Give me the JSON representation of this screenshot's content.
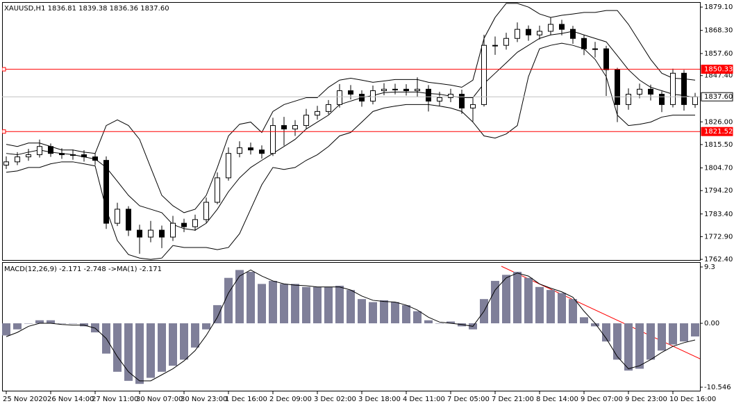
{
  "chart_data": [
    {
      "type": "candlestick",
      "title": "XAUUSD,H1  1836.81 1839.38 1836.36 1837.60",
      "categories": [
        "25 Nov 2020",
        null,
        null,
        null,
        "26 Nov 14:00",
        null,
        null,
        null,
        "27 Nov 11:00",
        null,
        null,
        null,
        "30 Nov 07:00",
        null,
        null,
        null,
        "30 Nov 23:00",
        null,
        null,
        null,
        "1 Dec 16:00",
        null,
        null,
        null,
        "2 Dec 09:00",
        null,
        null,
        null,
        "3 Dec 02:00",
        null,
        null,
        null,
        "3 Dec 18:00",
        null,
        null,
        null,
        "4 Dec 11:00",
        null,
        null,
        null,
        "7 Dec 05:00",
        null,
        null,
        null,
        "7 Dec 21:00",
        null,
        null,
        null,
        "8 Dec 14:00",
        null,
        null,
        null,
        "9 Dec 07:00",
        null,
        null,
        null,
        "9 Dec 23:00",
        null,
        null,
        null,
        "10 Dec 16:00",
        null,
        null
      ],
      "open": [
        1806.0,
        1807.5,
        1809.8,
        1810.8,
        1814.6,
        1811.4,
        1810.8,
        1810.8,
        1809.8,
        1808.2,
        1779.1,
        1785.6,
        1775.9,
        1772.7,
        1775.9,
        1772.7,
        1779.1,
        1777.5,
        1780.8,
        1788.8,
        1800.1,
        1811.4,
        1814.0,
        1813.0,
        1811.4,
        1824.3,
        1822.7,
        1824.3,
        1829.1,
        1830.8,
        1834.0,
        1840.4,
        1838.8,
        1835.6,
        1840.4,
        1841.1,
        1841.1,
        1840.4,
        1841.1,
        1835.6,
        1837.2,
        1838.8,
        1832.4,
        1834.0,
        1861.4,
        1861.4,
        1864.6,
        1868.8,
        1866.2,
        1867.9,
        1871.1,
        1868.8,
        1864.6,
        1859.8,
        1859.8,
        1850.1,
        1834.0,
        1838.8,
        1841.1,
        1838.8,
        1834.0,
        1848.5,
        1834.0
      ],
      "high": [
        1810.0,
        1812.0,
        1813.5,
        1817.8,
        1816.0,
        1813.8,
        1813.2,
        1812.9,
        1811.5,
        1810.0,
        1788.6,
        1787.0,
        1778.4,
        1780.2,
        1778.0,
        1782.5,
        1781.2,
        1783.1,
        1791.0,
        1802.6,
        1814.2,
        1817.0,
        1816.4,
        1815.1,
        1827.9,
        1828.3,
        1826.8,
        1832.0,
        1833.4,
        1836.1,
        1843.5,
        1843.0,
        1840.6,
        1842.8,
        1843.9,
        1843.6,
        1843.4,
        1846.6,
        1843.0,
        1839.9,
        1841.3,
        1840.9,
        1837.0,
        1866.3,
        1865.5,
        1867.2,
        1872.0,
        1870.6,
        1870.5,
        1874.4,
        1873.2,
        1870.4,
        1866.3,
        1863.0,
        1861.2,
        1851.0,
        1841.5,
        1843.7,
        1843.2,
        1840.1,
        1850.6,
        1850.0,
        1839.4
      ],
      "low": [
        1804.2,
        1806.0,
        1808.0,
        1809.5,
        1809.8,
        1808.9,
        1808.5,
        1807.6,
        1806.0,
        1776.5,
        1777.8,
        1773.2,
        1765.0,
        1770.3,
        1767.6,
        1770.9,
        1775.0,
        1775.6,
        1779.4,
        1787.9,
        1798.8,
        1809.6,
        1810.9,
        1809.0,
        1810.2,
        1815.0,
        1819.5,
        1822.8,
        1827.0,
        1829.5,
        1832.6,
        1836.4,
        1833.0,
        1834.1,
        1838.3,
        1838.7,
        1838.2,
        1837.5,
        1830.8,
        1833.4,
        1835.1,
        1829.7,
        1826.2,
        1833.1,
        1857.0,
        1859.4,
        1862.9,
        1863.5,
        1864.1,
        1866.2,
        1866.0,
        1862.1,
        1856.9,
        1855.8,
        1838.0,
        1825.9,
        1831.6,
        1836.9,
        1835.9,
        1830.5,
        1832.7,
        1831.2,
        1832.5
      ],
      "close": [
        1807.5,
        1809.8,
        1810.8,
        1814.6,
        1811.4,
        1810.8,
        1810.8,
        1809.8,
        1808.2,
        1779.1,
        1785.6,
        1775.9,
        1772.7,
        1775.9,
        1772.7,
        1779.1,
        1777.5,
        1780.8,
        1788.8,
        1800.1,
        1811.4,
        1814.0,
        1813.0,
        1811.4,
        1824.3,
        1822.7,
        1824.3,
        1829.1,
        1830.8,
        1834.0,
        1840.4,
        1838.8,
        1835.6,
        1840.4,
        1841.1,
        1841.1,
        1840.4,
        1841.1,
        1835.6,
        1837.2,
        1838.8,
        1832.4,
        1834.0,
        1861.4,
        1861.4,
        1864.6,
        1868.8,
        1866.2,
        1867.9,
        1871.1,
        1868.8,
        1864.6,
        1859.8,
        1859.8,
        1850.1,
        1834.0,
        1838.8,
        1841.1,
        1838.8,
        1834.0,
        1848.5,
        1834.0,
        1837.6
      ],
      "bands": {
        "upper": [
          1815.6,
          1814.6,
          1816.2,
          1816.2,
          1814.6,
          1813.0,
          1813.0,
          1812.0,
          1811.4,
          1824.3,
          1826.9,
          1824.3,
          1817.9,
          1804.9,
          1792.0,
          1787.2,
          1784.0,
          1785.6,
          1792.0,
          1804.9,
          1819.5,
          1824.9,
          1825.9,
          1821.1,
          1830.8,
          1834.0,
          1835.6,
          1837.2,
          1837.2,
          1842.0,
          1845.3,
          1846.2,
          1845.3,
          1844.3,
          1844.9,
          1845.6,
          1845.6,
          1845.6,
          1844.3,
          1843.7,
          1843.0,
          1842.0,
          1845.3,
          1864.6,
          1874.3,
          1880.8,
          1880.8,
          1879.1,
          1875.9,
          1874.3,
          1875.3,
          1875.9,
          1876.6,
          1876.6,
          1877.5,
          1877.5,
          1871.1,
          1863.0,
          1854.9,
          1848.5,
          1846.2,
          1845.9,
          1845.3
        ],
        "middle": [
          1811.4,
          1810.8,
          1812.0,
          1813.0,
          1812.0,
          1811.4,
          1810.8,
          1809.8,
          1808.8,
          1804.9,
          1798.5,
          1792.0,
          1787.2,
          1785.6,
          1784.0,
          1778.5,
          1776.6,
          1775.9,
          1779.1,
          1785.6,
          1793.7,
          1800.1,
          1804.9,
          1808.2,
          1811.4,
          1814.6,
          1817.9,
          1822.7,
          1825.9,
          1829.1,
          1834.0,
          1835.6,
          1837.2,
          1838.2,
          1839.5,
          1839.8,
          1839.8,
          1839.8,
          1839.1,
          1838.8,
          1837.9,
          1837.2,
          1837.2,
          1843.7,
          1848.5,
          1853.3,
          1858.2,
          1861.4,
          1864.6,
          1866.2,
          1866.9,
          1867.9,
          1866.2,
          1864.6,
          1863.0,
          1856.6,
          1850.1,
          1845.3,
          1842.0,
          1840.4,
          1838.8,
          1838.2,
          1837.2
        ],
        "lower": [
          1802.7,
          1803.3,
          1804.9,
          1804.9,
          1806.6,
          1807.5,
          1807.5,
          1806.6,
          1805.6,
          1785.6,
          1771.1,
          1764.6,
          1763.0,
          1762.4,
          1763.0,
          1768.8,
          1767.9,
          1767.9,
          1767.9,
          1766.9,
          1767.9,
          1774.3,
          1785.6,
          1796.9,
          1804.9,
          1804.0,
          1804.9,
          1808.2,
          1810.8,
          1814.6,
          1819.5,
          1821.1,
          1825.9,
          1830.8,
          1832.4,
          1833.3,
          1834.0,
          1834.0,
          1834.0,
          1833.3,
          1832.4,
          1830.8,
          1825.9,
          1819.5,
          1818.5,
          1820.4,
          1824.3,
          1846.9,
          1859.8,
          1861.4,
          1862.4,
          1861.4,
          1859.8,
          1854.9,
          1846.9,
          1829.1,
          1824.3,
          1824.9,
          1825.9,
          1828.2,
          1829.1,
          1829.1,
          1829.1
        ]
      },
      "up_color": "#ffffff",
      "down_color": "#000000",
      "band_color": "#000000",
      "ylim": [
        1762.1,
        1881.4
      ],
      "yticks": [
        {
          "value": 1879.1,
          "label": "1879.10"
        },
        {
          "value": 1868.3,
          "label": "1868.30"
        },
        {
          "value": 1857.6,
          "label": "1857.60"
        },
        {
          "value": 1847.4,
          "label": "1847.40"
        },
        {
          "value": 1826,
          "label": "1826.00"
        },
        {
          "value": 1815.5,
          "label": "1815.50"
        },
        {
          "value": 1804.7,
          "label": "1804.70"
        },
        {
          "value": 1794.2,
          "label": "1794.20"
        },
        {
          "value": 1783.4,
          "label": "1783.40"
        },
        {
          "value": 1772.9,
          "label": "1772.90"
        },
        {
          "value": 1762.4,
          "label": "1762.40"
        }
      ],
      "hlines": [
        {
          "value": 1850.33,
          "color": "#ff0000"
        },
        {
          "value": 1821.52,
          "color": "#ff0000"
        },
        {
          "value": 1837.6,
          "label": "1837.60",
          "color": "#c0c0c0"
        }
      ]
    },
    {
      "type": "macd",
      "title": "MACD(12,26,9) -2.171 -2.748 ->MA(1) -2.171",
      "histogram": [
        -2,
        -1,
        0,
        0.5,
        0.5,
        0,
        0,
        -0.5,
        -1.5,
        -5,
        -8,
        -9.5,
        -10,
        -9,
        -8,
        -7,
        -6,
        -4,
        -1,
        3,
        7.5,
        8.8,
        8.5,
        6.5,
        7,
        6.5,
        6.5,
        6,
        6,
        6,
        6.2,
        5.5,
        4,
        3.5,
        3.8,
        3.5,
        3,
        2,
        0.5,
        0,
        0.3,
        -0.5,
        -1,
        4,
        7,
        8,
        8.5,
        7.5,
        6,
        5.5,
        5,
        4,
        1,
        -0.5,
        -3,
        -6,
        -7.8,
        -7.5,
        -6,
        -4.5,
        -3.5,
        -3,
        -2.171
      ],
      "signal": [
        -2.2,
        -1.5,
        -0.5,
        0,
        0,
        -0.2,
        -0.3,
        -0.3,
        -0.8,
        -2.5,
        -5.5,
        -8,
        -9.5,
        -9.5,
        -8.5,
        -7.5,
        -6.2,
        -4.5,
        -2,
        1,
        5,
        7.8,
        8.8,
        7.8,
        7,
        6.5,
        6.3,
        6.2,
        6,
        6,
        6,
        5.5,
        4.5,
        3.8,
        3.6,
        3.5,
        3,
        2.2,
        1,
        0.2,
        0,
        -0.2,
        -0.5,
        2,
        5.5,
        7.5,
        8.3,
        7.8,
        6.5,
        5.8,
        5.2,
        4.3,
        2,
        0,
        -2.5,
        -5.5,
        -7.5,
        -7,
        -6,
        -4.8,
        -3.8,
        -3.2,
        -2.748
      ],
      "histogram_color": "#7f7f99",
      "signal_color": "#000000",
      "ylim": [
        -11.24,
        9.99
      ],
      "yticks": [
        9.3,
        {
          "value": 0,
          "label": "0.00"
        },
        -10.546
      ]
    }
  ]
}
